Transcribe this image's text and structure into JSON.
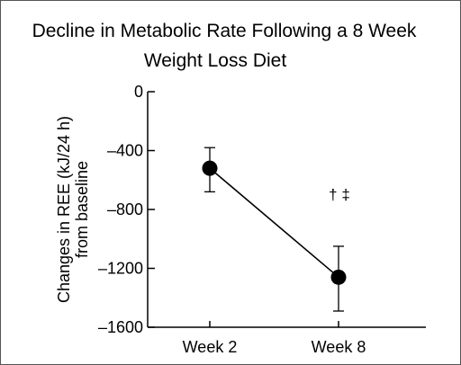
{
  "chart_data": {
    "type": "line",
    "title": [
      "Decline in Metabolic Rate Following a 8 Week",
      "Weight Loss Diet"
    ],
    "xlabel": "",
    "ylabel": [
      "Changes in REE (kJ/24 h)",
      "from baseline"
    ],
    "categories": [
      "Week 2",
      "Week 8"
    ],
    "series": [
      {
        "values": [
          -520,
          -1260
        ],
        "error": [
          [
            -680,
            -380
          ],
          [
            -1490,
            -1050
          ]
        ]
      }
    ],
    "ylim": [
      -1600,
      0
    ],
    "yticks": [
      0,
      -400,
      -800,
      -1200,
      -1600
    ],
    "ytick_labels": [
      "0",
      "–400",
      "–800",
      "–1200",
      "–1600"
    ],
    "annotation": "† ‡",
    "grid": false,
    "legend": "none"
  }
}
